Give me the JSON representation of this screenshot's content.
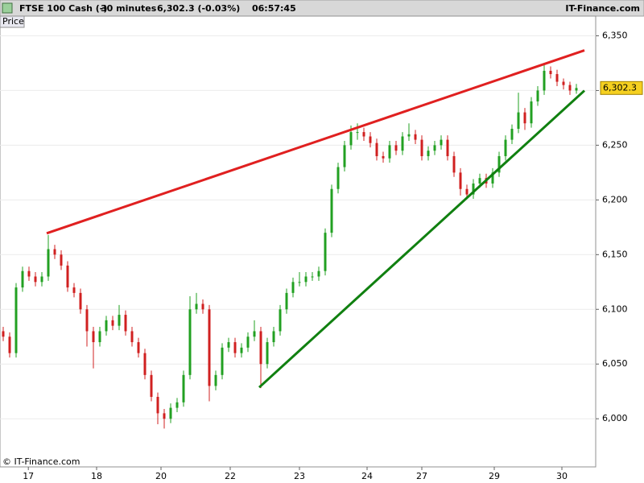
{
  "chart_data": {
    "type": "candlestick",
    "header": [
      "FTSE 100 Cash (-)",
      "30 minutes",
      "6,302.3 (-0.03%)",
      "06:57:45"
    ],
    "brand": "IT-Finance.com",
    "panel_label": "Price",
    "copyright": "© IT-Finance.com",
    "up_color": "#22a022",
    "down_color": "#d02020",
    "xlim": [
      -0.5,
      92
    ],
    "xticks": [
      {
        "value": 3.9,
        "label": "17"
      },
      {
        "value": 14.5,
        "label": "18"
      },
      {
        "value": 24.5,
        "label": "20"
      },
      {
        "value": 35.25,
        "label": "22"
      },
      {
        "value": 46,
        "label": "23"
      },
      {
        "value": 56.5,
        "label": "24"
      },
      {
        "value": 65,
        "label": "27"
      },
      {
        "value": 76.25,
        "label": "29"
      },
      {
        "value": 86.75,
        "label": "30"
      }
    ],
    "ylim": [
      5956,
      6368
    ],
    "yticks": [
      {
        "value": 6000,
        "label": "6,000"
      },
      {
        "value": 6050,
        "label": "6,050"
      },
      {
        "value": 6100,
        "label": "6,100"
      },
      {
        "value": 6150,
        "label": "6,150"
      },
      {
        "value": 6200,
        "label": "6,200"
      },
      {
        "value": 6250,
        "label": "6,250"
      },
      {
        "value": 6300,
        "label": "6,300"
      },
      {
        "value": 6350,
        "label": "6,350"
      }
    ],
    "grid": true,
    "last_price": {
      "value": 6302.3,
      "label": "6,302.3"
    },
    "trendlines": [
      {
        "color": "#e02020",
        "x": [
          6.75,
          90.25
        ],
        "y": [
          6169.5,
          6336.7
        ]
      },
      {
        "color": "#108010",
        "x": [
          39.75,
          90.25
        ],
        "y": [
          6028.7,
          6299.9
        ]
      }
    ],
    "ohlc": [
      [
        6080,
        6084,
        6071,
        6075
      ],
      [
        6075,
        6079,
        6056,
        6060
      ],
      [
        6060,
        6124,
        6056,
        6120
      ],
      [
        6120,
        6139,
        6116,
        6135
      ],
      [
        6135,
        6139,
        6126,
        6130
      ],
      [
        6130,
        6134,
        6121,
        6125
      ],
      [
        6125,
        6134,
        6121,
        6130
      ],
      [
        6130,
        6168,
        6126,
        6155
      ],
      [
        6155,
        6159,
        6146,
        6150
      ],
      [
        6150,
        6154,
        6136,
        6140
      ],
      [
        6140,
        6144,
        6116,
        6120
      ],
      [
        6120,
        6124,
        6111,
        6115
      ],
      [
        6115,
        6119,
        6096,
        6100
      ],
      [
        6100,
        6104,
        6066,
        6080
      ],
      [
        6080,
        6084,
        6046,
        6070
      ],
      [
        6070,
        6084,
        6066,
        6080
      ],
      [
        6080,
        6094,
        6076,
        6090
      ],
      [
        6090,
        6094,
        6081,
        6085
      ],
      [
        6085,
        6104,
        6081,
        6095
      ],
      [
        6095,
        6099,
        6076,
        6080
      ],
      [
        6080,
        6084,
        6066,
        6070
      ],
      [
        6070,
        6074,
        6056,
        6060
      ],
      [
        6060,
        6064,
        6036,
        6040
      ],
      [
        6040,
        6044,
        6016,
        6020
      ],
      [
        6020,
        6024,
        5995,
        6005
      ],
      [
        6005,
        6009,
        5991,
        6000
      ],
      [
        6000,
        6014,
        5996,
        6010
      ],
      [
        6010,
        6019,
        6006,
        6015
      ],
      [
        6015,
        6044,
        6011,
        6040
      ],
      [
        6040,
        6112,
        6036,
        6100
      ],
      [
        6100,
        6115,
        6096,
        6105
      ],
      [
        6105,
        6109,
        6096,
        6100
      ],
      [
        6100,
        6104,
        6016,
        6030
      ],
      [
        6030,
        6044,
        6026,
        6040
      ],
      [
        6040,
        6069,
        6036,
        6065
      ],
      [
        6065,
        6074,
        6061,
        6070
      ],
      [
        6070,
        6074,
        6056,
        6060
      ],
      [
        6060,
        6069,
        6056,
        6065
      ],
      [
        6065,
        6079,
        6061,
        6075
      ],
      [
        6075,
        6090,
        6071,
        6080
      ],
      [
        6080,
        6084,
        6028,
        6050
      ],
      [
        6050,
        6074,
        6046,
        6070
      ],
      [
        6070,
        6084,
        6066,
        6080
      ],
      [
        6080,
        6104,
        6076,
        6100
      ],
      [
        6100,
        6119,
        6096,
        6115
      ],
      [
        6115,
        6129,
        6111,
        6125
      ],
      [
        6125,
        6134,
        6121,
        6125
      ],
      [
        6125,
        6134,
        6121,
        6130
      ],
      [
        6130,
        6134,
        6126,
        6130
      ],
      [
        6130,
        6139,
        6126,
        6135
      ],
      [
        6135,
        6174,
        6131,
        6170
      ],
      [
        6170,
        6214,
        6166,
        6210
      ],
      [
        6210,
        6234,
        6206,
        6230
      ],
      [
        6230,
        6254,
        6226,
        6250
      ],
      [
        6250,
        6268,
        6246,
        6262
      ],
      [
        6262,
        6270,
        6255,
        6262
      ],
      [
        6262,
        6266,
        6254,
        6258
      ],
      [
        6258,
        6262,
        6248,
        6252
      ],
      [
        6252,
        6256,
        6236,
        6240
      ],
      [
        6240,
        6244,
        6234,
        6238
      ],
      [
        6238,
        6254,
        6234,
        6250
      ],
      [
        6250,
        6254,
        6241,
        6245
      ],
      [
        6245,
        6262,
        6241,
        6258
      ],
      [
        6258,
        6270,
        6254,
        6260
      ],
      [
        6260,
        6264,
        6251,
        6255
      ],
      [
        6255,
        6259,
        6236,
        6240
      ],
      [
        6240,
        6249,
        6236,
        6245
      ],
      [
        6245,
        6254,
        6241,
        6250
      ],
      [
        6250,
        6259,
        6246,
        6255
      ],
      [
        6255,
        6259,
        6236,
        6240
      ],
      [
        6240,
        6244,
        6221,
        6225
      ],
      [
        6225,
        6229,
        6204,
        6210
      ],
      [
        6210,
        6214,
        6201,
        6205
      ],
      [
        6205,
        6219,
        6201,
        6215
      ],
      [
        6215,
        6224,
        6211,
        6220
      ],
      [
        6220,
        6224,
        6211,
        6215
      ],
      [
        6215,
        6229,
        6211,
        6225
      ],
      [
        6225,
        6244,
        6221,
        6240
      ],
      [
        6240,
        6259,
        6236,
        6255
      ],
      [
        6255,
        6269,
        6251,
        6265
      ],
      [
        6265,
        6298,
        6261,
        6280
      ],
      [
        6280,
        6284,
        6264,
        6270
      ],
      [
        6270,
        6294,
        6266,
        6290
      ],
      [
        6290,
        6304,
        6286,
        6300
      ],
      [
        6300,
        6325,
        6296,
        6318
      ],
      [
        6318,
        6322,
        6311,
        6315
      ],
      [
        6315,
        6319,
        6304,
        6308
      ],
      [
        6308,
        6311,
        6301,
        6305
      ],
      [
        6305,
        6308,
        6296,
        6300
      ],
      [
        6300,
        6306,
        6297,
        6302.3
      ]
    ]
  }
}
